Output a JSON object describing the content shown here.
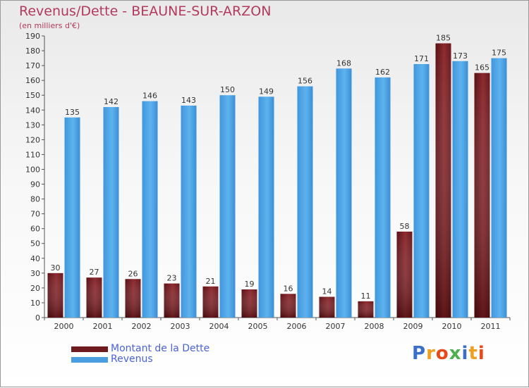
{
  "chart_data": {
    "type": "bar",
    "title": "Revenus/Dette - BEAUNE-SUR-ARZON",
    "subtitle": "(en milliers d'€)",
    "categories": [
      "2000",
      "2001",
      "2002",
      "2003",
      "2004",
      "2005",
      "2006",
      "2007",
      "2008",
      "2009",
      "2010",
      "2011"
    ],
    "series": [
      {
        "name": "Montant de la Dette",
        "color": "#7a1f24",
        "values": [
          30,
          27,
          26,
          23,
          21,
          19,
          16,
          14,
          11,
          58,
          185,
          165
        ]
      },
      {
        "name": "Revenus",
        "color": "#4a9ee0",
        "values": [
          135,
          142,
          146,
          143,
          150,
          149,
          156,
          168,
          162,
          171,
          173,
          175
        ]
      }
    ],
    "ylim": [
      0,
      190
    ],
    "ytick_step": 10,
    "grid": false,
    "legend_position": "bottom-left"
  },
  "logo": {
    "text": "Proxiti",
    "colors": [
      "#3a6fc9",
      "#f0a020",
      "#e64a19",
      "#4caf50",
      "#3a6fc9",
      "#f0a020",
      "#e64a19"
    ]
  }
}
